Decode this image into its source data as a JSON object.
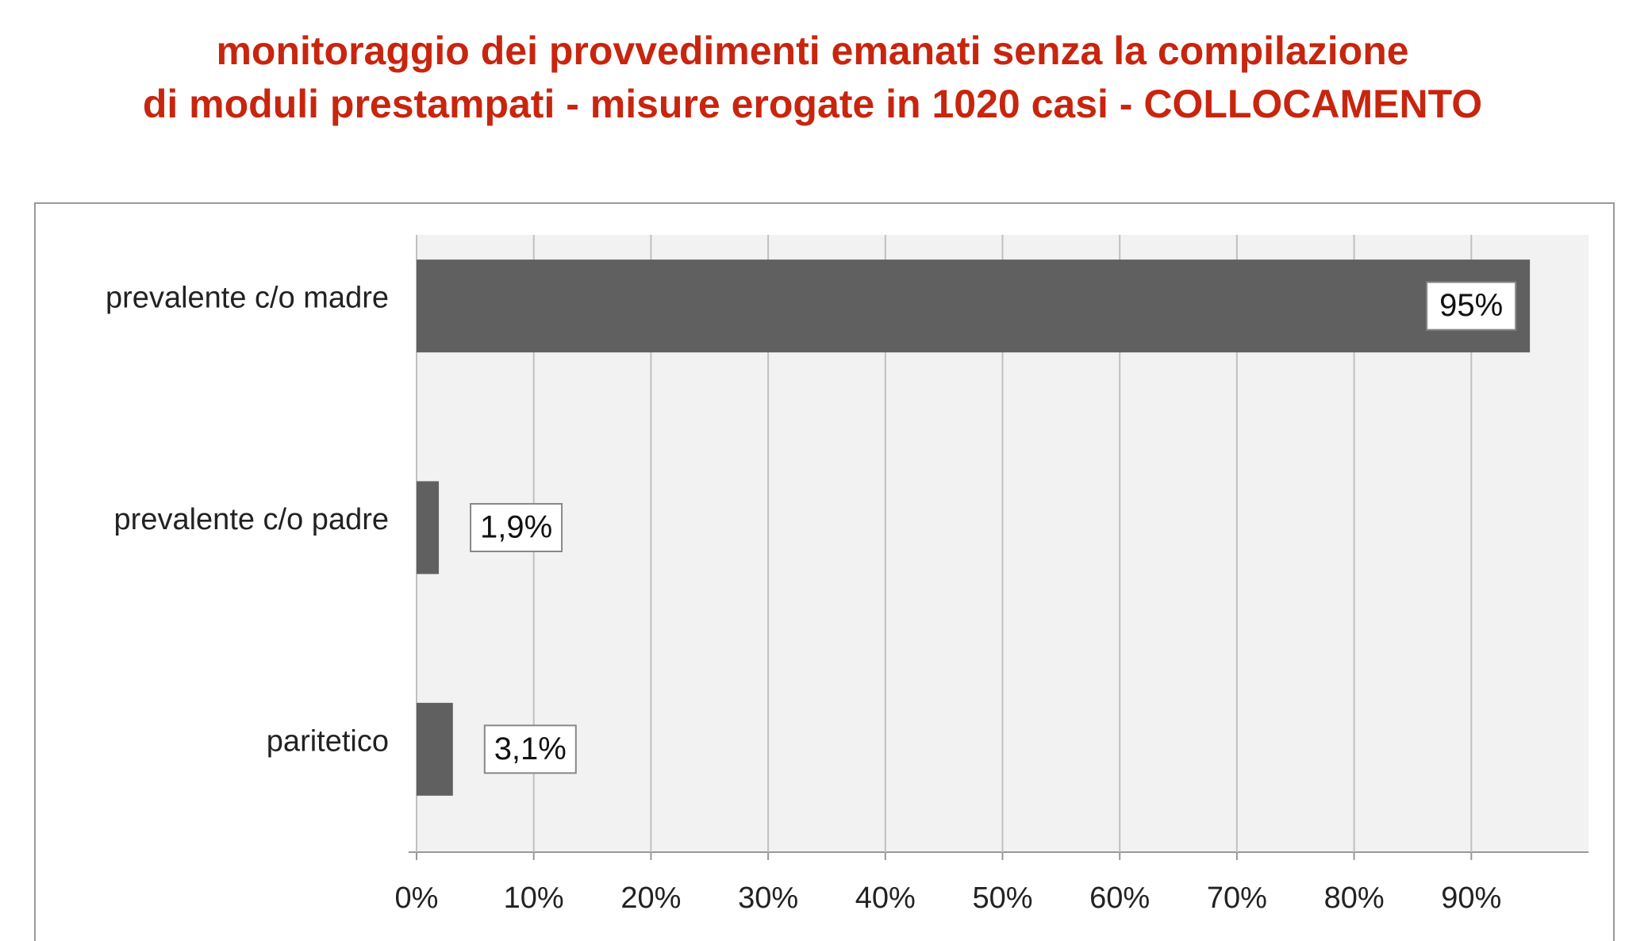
{
  "chart_data": {
    "type": "hbar",
    "title": [
      "monitoraggio dei provvedimenti emanati senza la compilazione",
      "di moduli prestampati - misure erogate in 1020 casi - COLLOCAMENTO"
    ],
    "categories": [
      "prevalente c/o madre",
      "prevalente c/o padre",
      "paritetico"
    ],
    "values": [
      95,
      1.9,
      3.1
    ],
    "value_labels": [
      "95%",
      "1,9%",
      "3,1%"
    ],
    "color": "#606060",
    "xlim": [
      0,
      100
    ],
    "xticks": [
      {
        "value": 0,
        "label": "0%"
      },
      {
        "value": 10,
        "label": "10%"
      },
      {
        "value": 20,
        "label": "20%"
      },
      {
        "value": 30,
        "label": "30%"
      },
      {
        "value": 40,
        "label": "40%"
      },
      {
        "value": 50,
        "label": "50%"
      },
      {
        "value": 60,
        "label": "60%"
      },
      {
        "value": 70,
        "label": "70%"
      },
      {
        "value": 80,
        "label": "80%"
      },
      {
        "value": 90,
        "label": "90%"
      }
    ],
    "grid": true
  }
}
